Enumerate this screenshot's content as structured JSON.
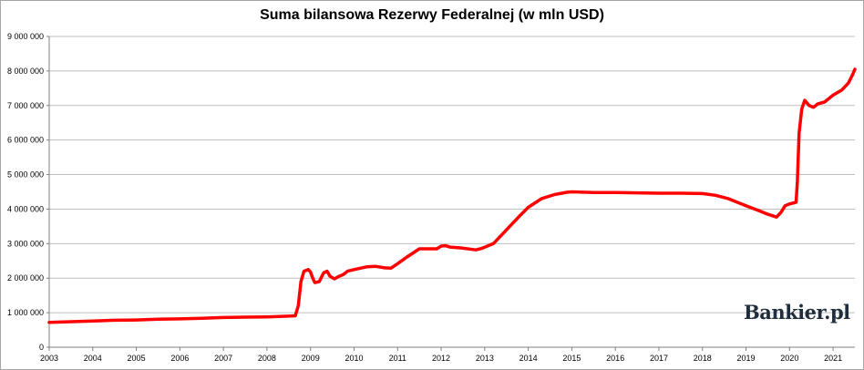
{
  "watermark": "Bankier.pl",
  "colors": {
    "line": "#ff0000",
    "grid": "#bfbfbf",
    "axis": "#808080"
  },
  "chart_data": {
    "type": "line",
    "title": "Suma bilansowa Rezerwy Federalnej (w mln USD)",
    "xlabel": "",
    "ylabel": "",
    "xlim": [
      2003.0,
      2021.5
    ],
    "ylim": [
      0,
      9000000
    ],
    "grid": true,
    "legend": "none",
    "x_ticks": [
      "2003",
      "2004",
      "2005",
      "2006",
      "2007",
      "2008",
      "2009",
      "2010",
      "2011",
      "2012",
      "2013",
      "2014",
      "2015",
      "2016",
      "2017",
      "2018",
      "2019",
      "2020",
      "2021"
    ],
    "y_ticks": [
      "0",
      "1 000 000",
      "2 000 000",
      "3 000 000",
      "4 000 000",
      "5 000 000",
      "6 000 000",
      "7 000 000",
      "8 000 000",
      "9 000 000"
    ],
    "y_tick_values": [
      0,
      1000000,
      2000000,
      3000000,
      4000000,
      5000000,
      6000000,
      7000000,
      8000000,
      9000000
    ],
    "series": [
      {
        "name": "",
        "x": [
          2003.0,
          2003.5,
          2004.0,
          2004.5,
          2005.0,
          2005.5,
          2006.0,
          2006.5,
          2007.0,
          2007.5,
          2008.0,
          2008.5,
          2008.65,
          2008.72,
          2008.78,
          2008.85,
          2008.95,
          2009.0,
          2009.05,
          2009.1,
          2009.2,
          2009.3,
          2009.38,
          2009.45,
          2009.55,
          2009.65,
          2009.75,
          2009.85,
          2010.0,
          2010.3,
          2010.5,
          2010.7,
          2010.85,
          2011.0,
          2011.2,
          2011.5,
          2011.9,
          2012.0,
          2012.1,
          2012.2,
          2012.5,
          2012.8,
          2012.95,
          2013.2,
          2013.5,
          2013.8,
          2014.0,
          2014.3,
          2014.6,
          2014.9,
          2015.0,
          2015.5,
          2016.0,
          2016.5,
          2017.0,
          2017.5,
          2018.0,
          2018.3,
          2018.6,
          2019.0,
          2019.3,
          2019.5,
          2019.7,
          2019.8,
          2019.9,
          2020.0,
          2020.15,
          2020.18,
          2020.22,
          2020.28,
          2020.35,
          2020.45,
          2020.55,
          2020.65,
          2020.8,
          2021.0,
          2021.2,
          2021.35,
          2021.45,
          2021.5
        ],
        "y": [
          720000,
          740000,
          760000,
          780000,
          790000,
          810000,
          820000,
          840000,
          860000,
          870000,
          880000,
          900000,
          910000,
          1200000,
          1900000,
          2200000,
          2250000,
          2180000,
          2000000,
          1870000,
          1900000,
          2150000,
          2200000,
          2050000,
          1980000,
          2050000,
          2100000,
          2200000,
          2250000,
          2330000,
          2340000,
          2300000,
          2290000,
          2420000,
          2600000,
          2850000,
          2850000,
          2930000,
          2940000,
          2900000,
          2870000,
          2820000,
          2870000,
          3000000,
          3400000,
          3800000,
          4050000,
          4300000,
          4420000,
          4490000,
          4500000,
          4480000,
          4480000,
          4470000,
          4460000,
          4460000,
          4450000,
          4400000,
          4300000,
          4100000,
          3950000,
          3850000,
          3770000,
          3900000,
          4100000,
          4150000,
          4200000,
          4800000,
          6200000,
          6900000,
          7150000,
          7000000,
          6950000,
          7050000,
          7100000,
          7300000,
          7450000,
          7650000,
          7900000,
          8050000
        ]
      }
    ]
  }
}
